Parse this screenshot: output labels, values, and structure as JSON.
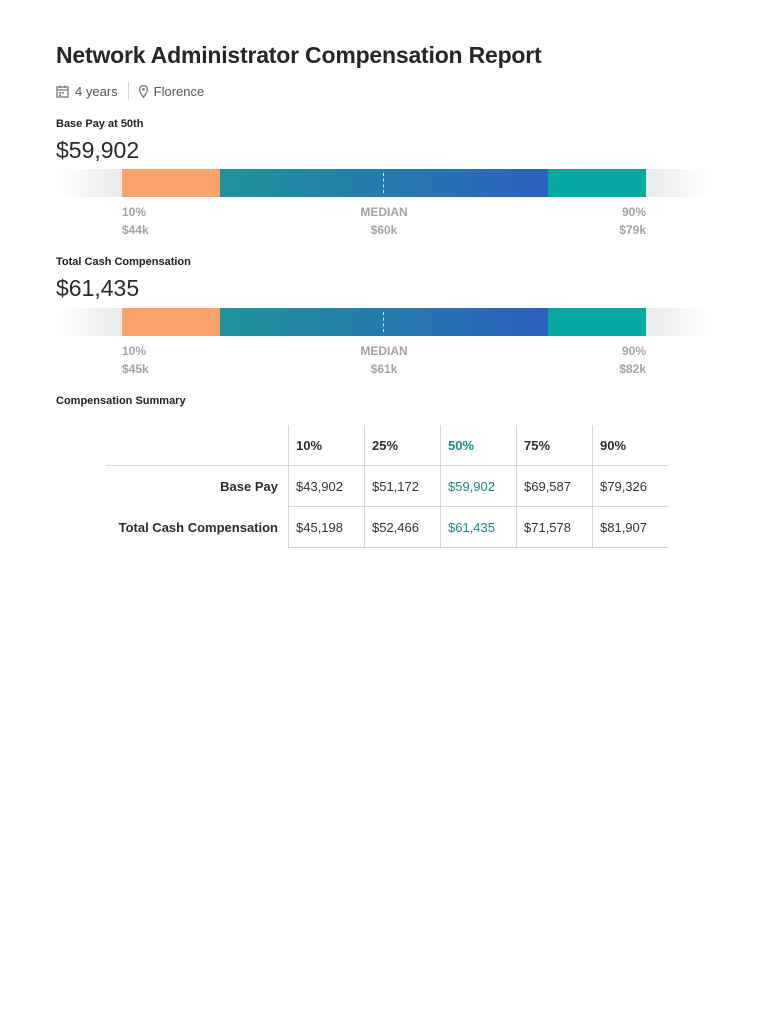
{
  "title": "Network Administrator Compensation Report",
  "meta": {
    "experience": "4 years",
    "location": "Florence",
    "icons": [
      "calendar-icon",
      "location-pin-icon"
    ]
  },
  "colors": {
    "low_segment": "#f7a46a",
    "mid_segment_start": "#1f9399",
    "mid_segment_end": "#2c61bf",
    "high_segment": "#05a8a0",
    "highlight_text": "#1b8a86"
  },
  "chart_data": [
    {
      "type": "bar",
      "title": "Base Pay at 50th",
      "value_label": "$59,902",
      "percentiles": [
        10,
        25,
        50,
        75,
        90
      ],
      "values": [
        43902,
        51172,
        59902,
        69587,
        79326
      ],
      "tick_labels": [
        {
          "pct": "10%",
          "value": "$44k"
        },
        {
          "pct": "MEDIAN",
          "value": "$60k"
        },
        {
          "pct": "90%",
          "value": "$79k"
        }
      ]
    },
    {
      "type": "bar",
      "title": "Total Cash Compensation",
      "value_label": "$61,435",
      "percentiles": [
        10,
        25,
        50,
        75,
        90
      ],
      "values": [
        45198,
        52466,
        61435,
        71578,
        81907
      ],
      "tick_labels": [
        {
          "pct": "10%",
          "value": "$45k"
        },
        {
          "pct": "MEDIAN",
          "value": "$61k"
        },
        {
          "pct": "90%",
          "value": "$82k"
        }
      ]
    }
  ],
  "summary": {
    "title": "Compensation Summary",
    "columns": [
      "10%",
      "25%",
      "50%",
      "75%",
      "90%"
    ],
    "highlight_column": 2,
    "rows": [
      {
        "label": "Base Pay",
        "values": [
          "$43,902",
          "$51,172",
          "$59,902",
          "$69,587",
          "$79,326"
        ]
      },
      {
        "label": "Total Cash Compensation",
        "values": [
          "$45,198",
          "$52,466",
          "$61,435",
          "$71,578",
          "$81,907"
        ]
      }
    ]
  }
}
